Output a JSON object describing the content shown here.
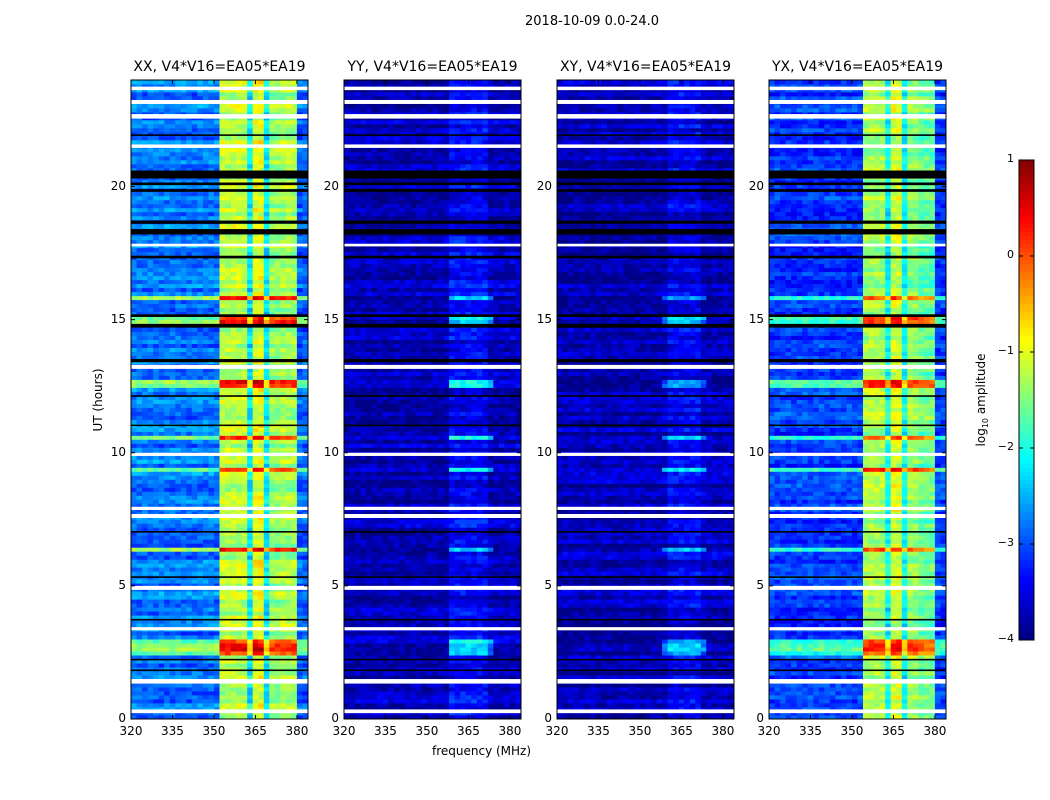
{
  "chart_data": {
    "type": "heatmap",
    "suptitle": "2018-10-09 0.0-24.0",
    "xlabel": "frequency (MHz)",
    "ylabel": "UT (hours)",
    "xlim": [
      320,
      384
    ],
    "ylim": [
      0,
      24
    ],
    "xticks": [
      "320",
      "335",
      "350",
      "365",
      "380"
    ],
    "xtick_values": [
      320,
      335,
      350,
      365,
      380
    ],
    "yticks": [
      "0",
      "5",
      "10",
      "15",
      "20"
    ],
    "ytick_values": [
      0,
      5,
      10,
      15,
      20
    ],
    "colorbar": {
      "label": "log10 amplitude",
      "label_main": "log",
      "label_sub": "10",
      "label_rest": " amplitude",
      "colormap": "jet",
      "range": [
        -4,
        1
      ],
      "ticks": [
        "1",
        "0",
        "−1",
        "−2",
        "−3",
        "−4"
      ],
      "tick_values": [
        1,
        0,
        -1,
        -2,
        -3,
        -4
      ]
    },
    "flagged_white_hours": [
      [
        0.22,
        0.36
      ],
      [
        1.33,
        1.5
      ],
      [
        3.33,
        3.45
      ],
      [
        4.85,
        5.0
      ],
      [
        7.55,
        7.7
      ],
      [
        7.85,
        7.97
      ],
      [
        9.88,
        10.0
      ],
      [
        13.15,
        13.3
      ],
      [
        17.75,
        17.85
      ],
      [
        21.45,
        21.58
      ],
      [
        22.55,
        22.72
      ],
      [
        23.1,
        23.25
      ],
      [
        23.62,
        23.75
      ]
    ],
    "gap_black_hours": [
      [
        1.8,
        1.86
      ],
      [
        2.2,
        2.26
      ],
      [
        3.7,
        3.76
      ],
      [
        5.3,
        5.36
      ],
      [
        7.0,
        7.06
      ],
      [
        11.0,
        11.06
      ],
      [
        12.1,
        12.16
      ],
      [
        13.4,
        13.52
      ],
      [
        14.7,
        14.84
      ],
      [
        15.1,
        15.2
      ],
      [
        17.3,
        17.4
      ],
      [
        18.2,
        18.4
      ],
      [
        18.6,
        18.72
      ],
      [
        19.8,
        19.9
      ],
      [
        20.05,
        20.15
      ],
      [
        20.3,
        20.6
      ],
      [
        21.9,
        21.96
      ]
    ],
    "bright_events_hours": [
      2.55,
      2.85,
      6.4,
      9.4,
      10.6,
      12.6,
      15.0,
      15.8
    ],
    "panels": [
      {
        "title": "XX, V4*V16=EA05*EA19",
        "profile": [
          {
            "from": 320,
            "to": 353,
            "level": -2.8
          },
          {
            "from": 353,
            "to": 362,
            "level": -1.2
          },
          {
            "from": 362,
            "to": 364,
            "level": -2.2
          },
          {
            "from": 364,
            "to": 368,
            "level": -1.0
          },
          {
            "from": 368,
            "to": 370,
            "level": -2.2
          },
          {
            "from": 370,
            "to": 374,
            "level": -1.4
          },
          {
            "from": 374,
            "to": 375,
            "level": -2.2
          },
          {
            "from": 375,
            "to": 380,
            "level": -1.3
          },
          {
            "from": 380,
            "to": 384,
            "level": -2.9
          }
        ],
        "event_boost": 1.4
      },
      {
        "title": "YY, V4*V16=EA05*EA19",
        "profile": [
          {
            "from": 320,
            "to": 358,
            "level": -3.75
          },
          {
            "from": 358,
            "to": 373,
            "level": -3.4
          },
          {
            "from": 373,
            "to": 384,
            "level": -3.7
          }
        ],
        "event_boost": 1.3
      },
      {
        "title": "XY, V4*V16=EA05*EA19",
        "profile": [
          {
            "from": 320,
            "to": 360,
            "level": -3.75
          },
          {
            "from": 360,
            "to": 373,
            "level": -3.45
          },
          {
            "from": 373,
            "to": 384,
            "level": -3.72
          }
        ],
        "event_boost": 1.2
      },
      {
        "title": "YX, V4*V16=EA05*EA19",
        "profile": [
          {
            "from": 320,
            "to": 354,
            "level": -3.1
          },
          {
            "from": 354,
            "to": 362,
            "level": -1.3
          },
          {
            "from": 362,
            "to": 364,
            "level": -2.1
          },
          {
            "from": 364,
            "to": 368,
            "level": -1.1
          },
          {
            "from": 368,
            "to": 370,
            "level": -2.1
          },
          {
            "from": 370,
            "to": 374,
            "level": -1.4
          },
          {
            "from": 374,
            "to": 375,
            "level": -2.1
          },
          {
            "from": 375,
            "to": 380,
            "level": -1.6
          },
          {
            "from": 380,
            "to": 384,
            "level": -3.1
          }
        ],
        "event_boost": 1.4
      }
    ]
  }
}
